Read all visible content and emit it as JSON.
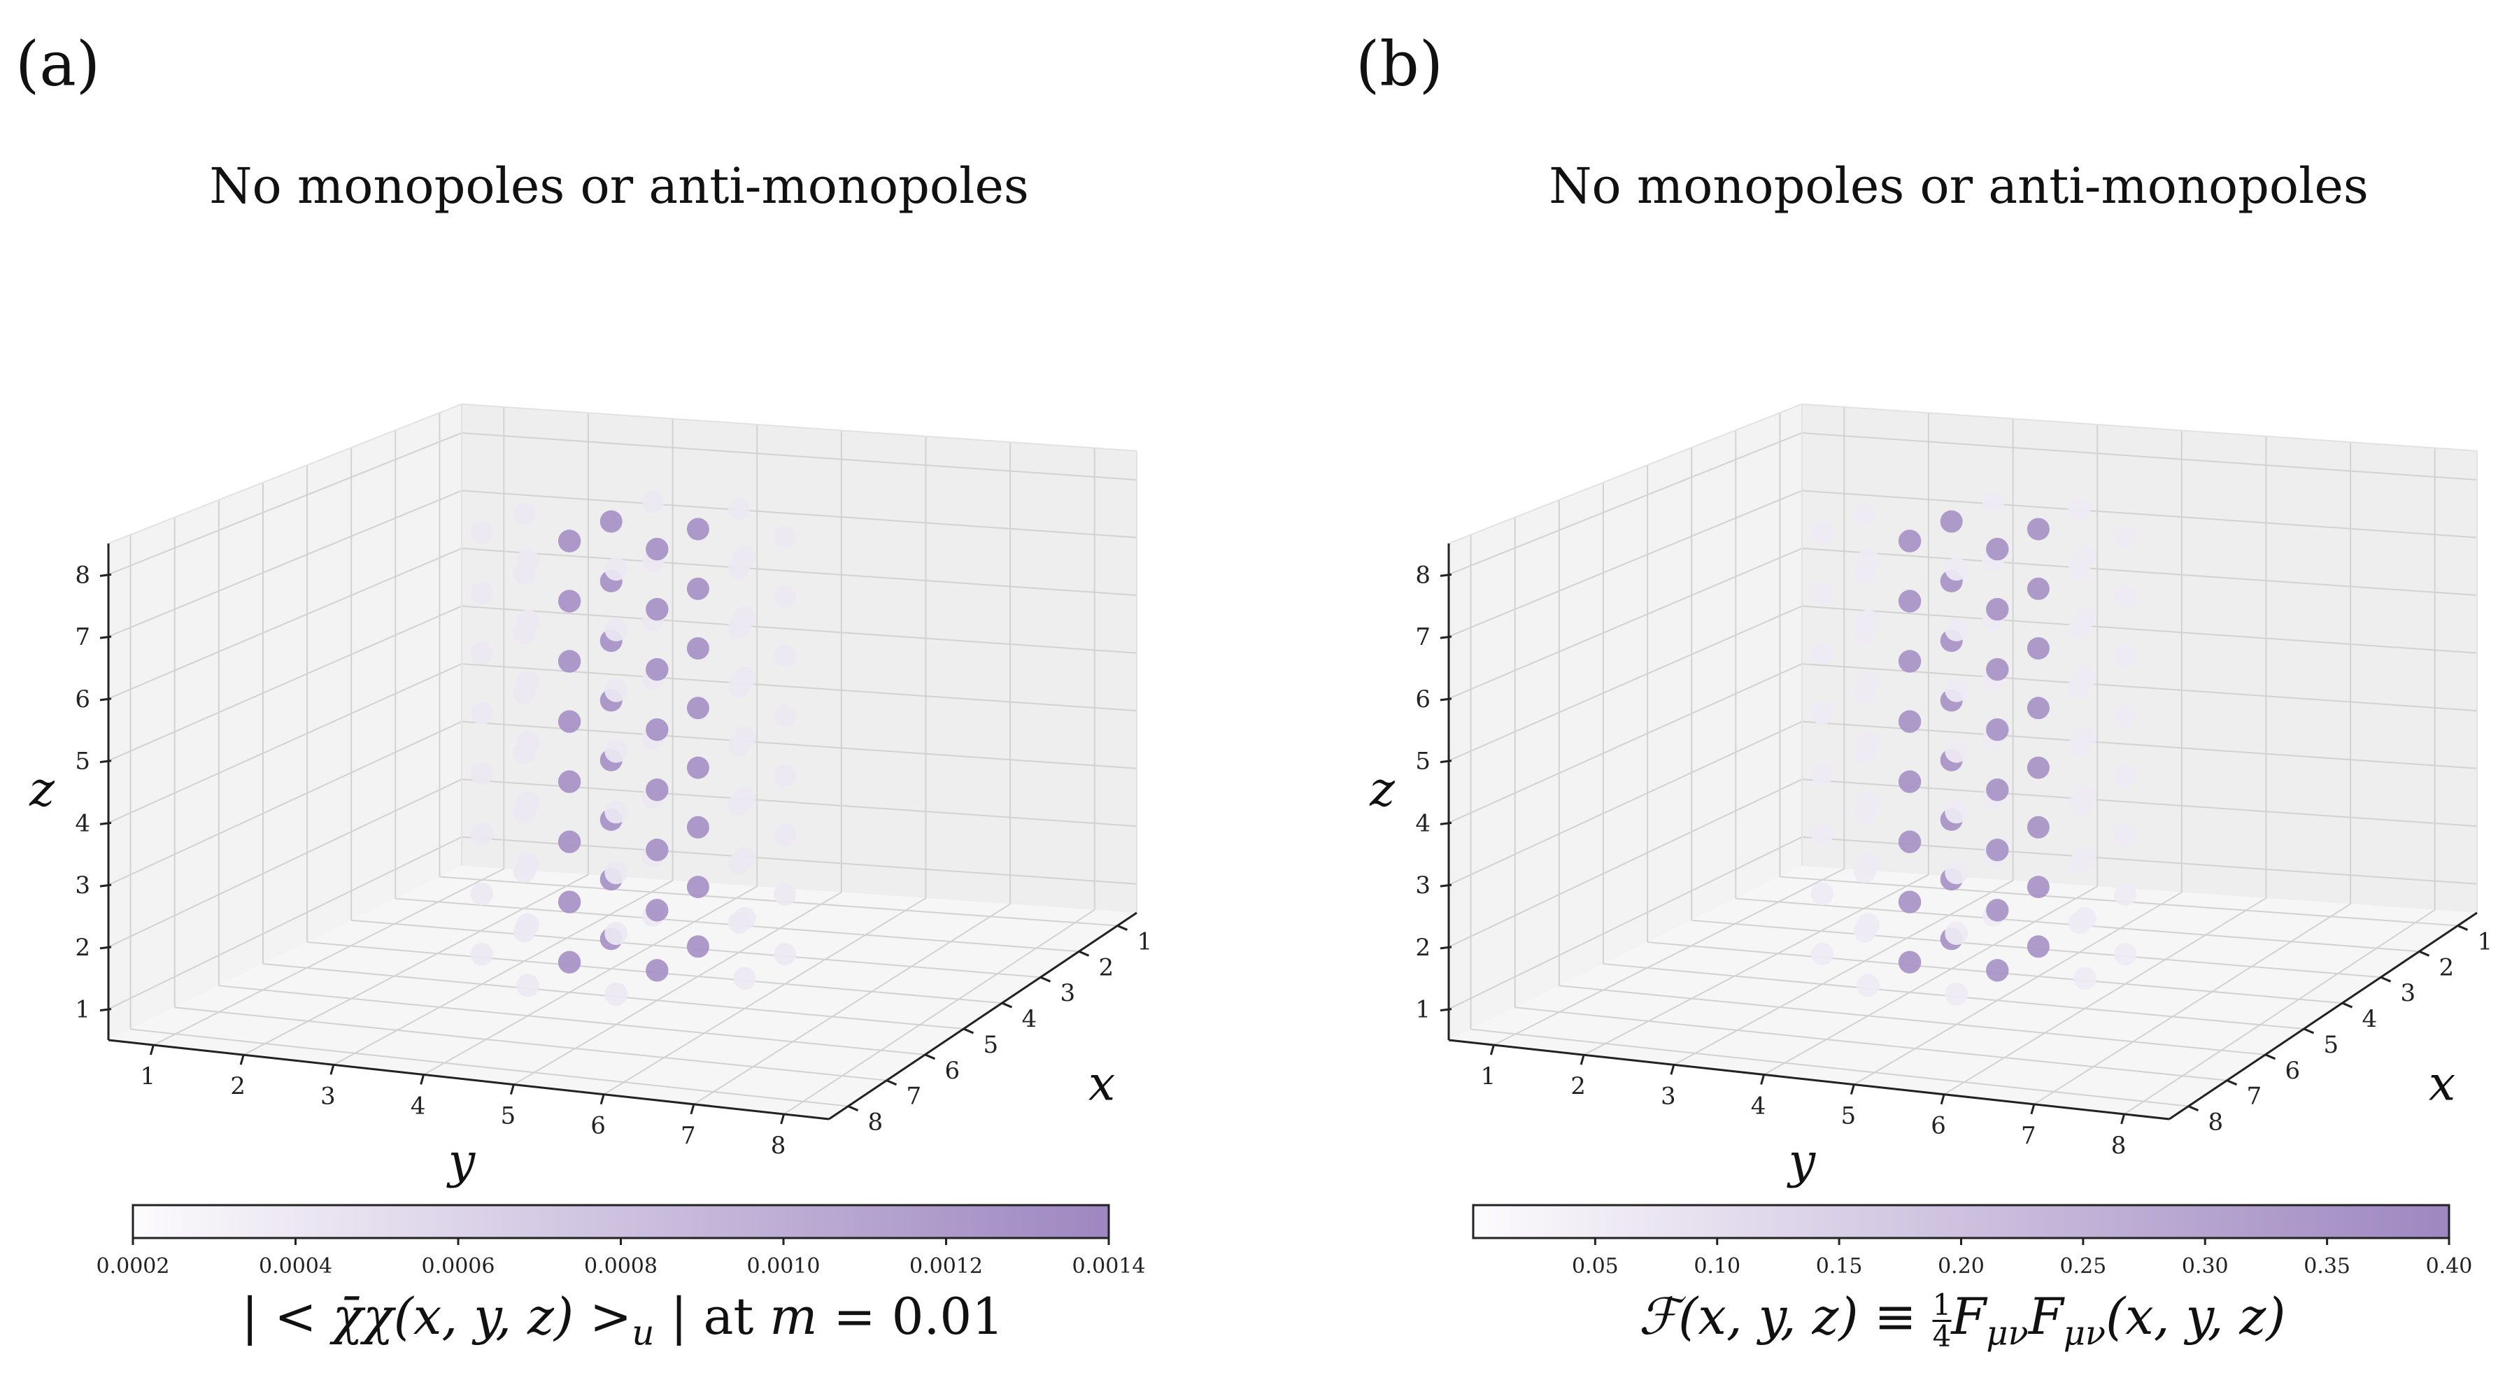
{
  "chart_data": [
    {
      "type": "scatter3d",
      "panel_label": "(a)",
      "title": "No monopoles or anti-monopoles",
      "xlabel": "x",
      "ylabel": "y",
      "zlabel": "z",
      "x_ticks": [
        "1",
        "2",
        "3",
        "4",
        "5",
        "6",
        "7",
        "8"
      ],
      "y_ticks": [
        "1",
        "2",
        "3",
        "4",
        "5",
        "6",
        "7",
        "8"
      ],
      "z_ticks": [
        "1",
        "2",
        "3",
        "4",
        "5",
        "6",
        "7",
        "8"
      ],
      "xlim": [
        0.5,
        8.5
      ],
      "ylim": [
        0.5,
        8.5
      ],
      "zlim": [
        0.5,
        8.5
      ],
      "grid": true,
      "colormap": "Purples",
      "colorbar": {
        "label_parts": [
          "| < ",
          "χ̄χ(x, y, z)",
          " >",
          "u",
          " | at ",
          "m",
          " = 0.01"
        ],
        "vmin": 0.0002,
        "vmax": 0.0014,
        "ticks": [
          "0.0002",
          "0.0004",
          "0.0006",
          "0.0008",
          "0.0010",
          "0.0012",
          "0.0014"
        ],
        "tick_values": [
          0.0002,
          0.0004,
          0.0006,
          0.0008,
          0.001,
          0.0012,
          0.0014
        ]
      },
      "point_grid": {
        "x": [
          3,
          4,
          5,
          6
        ],
        "y": [
          3,
          4,
          5,
          6
        ],
        "z": [
          1,
          2,
          3,
          4,
          5,
          6,
          7,
          8
        ],
        "inner_value": 0.0013,
        "outer_value": 0.0004,
        "description": "lattice sites with x,y in 3..6; inner ring (x,y in 4..5) strongly coloured"
      }
    },
    {
      "type": "scatter3d",
      "panel_label": "(b)",
      "title": "No monopoles or anti-monopoles",
      "xlabel": "x",
      "ylabel": "y",
      "zlabel": "z",
      "x_ticks": [
        "1",
        "2",
        "3",
        "4",
        "5",
        "6",
        "7",
        "8"
      ],
      "y_ticks": [
        "1",
        "2",
        "3",
        "4",
        "5",
        "6",
        "7",
        "8"
      ],
      "z_ticks": [
        "1",
        "2",
        "3",
        "4",
        "5",
        "6",
        "7",
        "8"
      ],
      "xlim": [
        0.5,
        8.5
      ],
      "ylim": [
        0.5,
        8.5
      ],
      "zlim": [
        0.5,
        8.5
      ],
      "grid": true,
      "colormap": "Purples",
      "colorbar": {
        "label_parts": [
          "ℱ(x, y, z) ≡ ",
          "1",
          "4",
          "F",
          "μν",
          "F",
          "μν",
          "(x, y, z)"
        ],
        "vmin": 0.0,
        "vmax": 0.4,
        "ticks": [
          "0.05",
          "0.10",
          "0.15",
          "0.20",
          "0.25",
          "0.30",
          "0.35",
          "0.40"
        ],
        "tick_values": [
          0.05,
          0.1,
          0.15,
          0.2,
          0.25,
          0.3,
          0.35,
          0.4
        ]
      },
      "point_grid": {
        "x": [
          3,
          4,
          5,
          6
        ],
        "y": [
          3,
          4,
          5,
          6
        ],
        "z": [
          1,
          2,
          3,
          4,
          5,
          6,
          7,
          8
        ],
        "inner_value": 0.36,
        "outer_value": 0.06,
        "description": "lattice sites with x,y in 3..6; inner ring (x,y in 4..5) strongly coloured"
      }
    }
  ],
  "colors": {
    "pane_back": "#eeeeee",
    "pane_side": "#f3f3f3",
    "pane_floor": "#f6f6f6",
    "grid": "#d2d2d2",
    "axis": "#222222",
    "cmap_low": "#fcfbfd",
    "cmap_high": "#9e87c0"
  }
}
